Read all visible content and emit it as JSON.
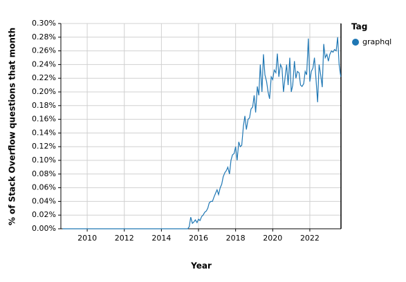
{
  "chart_data": {
    "type": "line",
    "xlabel": "Year",
    "ylabel": "% of Stack Overflow questions that month",
    "legend_title": "Tag",
    "legend": "right",
    "grid": true,
    "xlim": [
      2008.58,
      2023.68
    ],
    "ylim": [
      0,
      0.3
    ],
    "xticks": [
      2010,
      2012,
      2014,
      2016,
      2018,
      2020,
      2022
    ],
    "yticks": [
      {
        "value": 0,
        "label": "0.00%"
      },
      {
        "value": 0.02,
        "label": "0.02%"
      },
      {
        "value": 0.04,
        "label": "0.04%"
      },
      {
        "value": 0.06,
        "label": "0.06%"
      },
      {
        "value": 0.08,
        "label": "0.08%"
      },
      {
        "value": 0.1,
        "label": "0.10%"
      },
      {
        "value": 0.12,
        "label": "0.12%"
      },
      {
        "value": 0.14,
        "label": "0.14%"
      },
      {
        "value": 0.16,
        "label": "0.16%"
      },
      {
        "value": 0.18,
        "label": "0.18%"
      },
      {
        "value": 0.2,
        "label": "0.20%"
      },
      {
        "value": 0.22,
        "label": "0.22%"
      },
      {
        "value": 0.24,
        "label": "0.24%"
      },
      {
        "value": 0.26,
        "label": "0.26%"
      },
      {
        "value": 0.28,
        "label": "0.28%"
      },
      {
        "value": 0.3,
        "label": "0.30%"
      }
    ],
    "x": [
      2008.67,
      2015.42,
      2015.5,
      2015.58,
      2015.67,
      2015.75,
      2015.83,
      2015.92,
      2016.0,
      2016.08,
      2016.17,
      2016.25,
      2016.33,
      2016.42,
      2016.5,
      2016.58,
      2016.67,
      2016.75,
      2016.83,
      2016.92,
      2017.0,
      2017.08,
      2017.17,
      2017.25,
      2017.33,
      2017.42,
      2017.5,
      2017.58,
      2017.67,
      2017.75,
      2017.83,
      2017.92,
      2018.0,
      2018.08,
      2018.17,
      2018.25,
      2018.33,
      2018.42,
      2018.5,
      2018.58,
      2018.67,
      2018.75,
      2018.83,
      2018.92,
      2019.0,
      2019.08,
      2019.17,
      2019.25,
      2019.33,
      2019.42,
      2019.5,
      2019.58,
      2019.67,
      2019.75,
      2019.83,
      2019.92,
      2020.0,
      2020.08,
      2020.17,
      2020.25,
      2020.33,
      2020.42,
      2020.5,
      2020.58,
      2020.67,
      2020.75,
      2020.83,
      2020.92,
      2021.0,
      2021.08,
      2021.17,
      2021.25,
      2021.33,
      2021.42,
      2021.5,
      2021.58,
      2021.67,
      2021.75,
      2021.83,
      2021.92,
      2022.0,
      2022.08,
      2022.17,
      2022.25,
      2022.33,
      2022.42,
      2022.5,
      2022.58,
      2022.67,
      2022.75,
      2022.83,
      2022.92,
      2023.0,
      2023.08,
      2023.17,
      2023.25,
      2023.33,
      2023.42,
      2023.5,
      2023.58,
      2023.67
    ],
    "series": [
      {
        "name": "graphql",
        "color": "#1f77b4",
        "values": [
          0,
          0,
          0.003,
          0.017,
          0.008,
          0.01,
          0.013,
          0.009,
          0.014,
          0.012,
          0.018,
          0.02,
          0.024,
          0.026,
          0.03,
          0.038,
          0.04,
          0.04,
          0.046,
          0.052,
          0.057,
          0.05,
          0.06,
          0.065,
          0.076,
          0.082,
          0.085,
          0.09,
          0.08,
          0.1,
          0.108,
          0.11,
          0.12,
          0.1,
          0.127,
          0.12,
          0.122,
          0.15,
          0.165,
          0.145,
          0.16,
          0.162,
          0.175,
          0.178,
          0.195,
          0.17,
          0.208,
          0.195,
          0.24,
          0.2,
          0.255,
          0.225,
          0.215,
          0.2,
          0.19,
          0.222,
          0.218,
          0.232,
          0.228,
          0.256,
          0.222,
          0.24,
          0.235,
          0.2,
          0.222,
          0.24,
          0.21,
          0.25,
          0.2,
          0.21,
          0.245,
          0.22,
          0.23,
          0.228,
          0.21,
          0.208,
          0.212,
          0.23,
          0.225,
          0.278,
          0.215,
          0.23,
          0.235,
          0.25,
          0.22,
          0.185,
          0.24,
          0.226,
          0.207,
          0.27,
          0.25,
          0.255,
          0.245,
          0.255,
          0.26,
          0.258,
          0.262,
          0.26,
          0.28,
          0.24,
          0.222
        ]
      }
    ]
  }
}
